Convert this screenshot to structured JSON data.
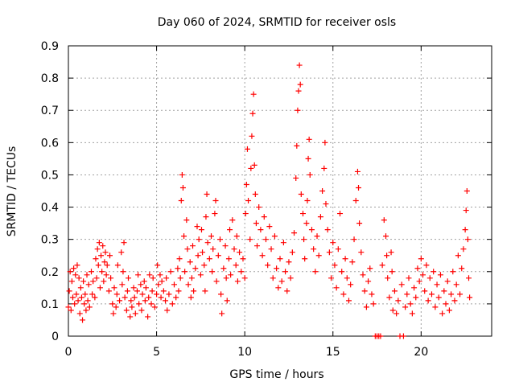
{
  "chart_data": {
    "type": "scatter",
    "title": "Day 060 of 2024, SRMTID for receiver osls",
    "xlabel": "GPS time / hours",
    "ylabel": "SRMTID / TECUs",
    "xlim": [
      0,
      24
    ],
    "ylim": [
      0,
      0.9
    ],
    "xticks": [
      0,
      5,
      10,
      15,
      20
    ],
    "yticks": [
      0,
      0.1,
      0.2,
      0.3,
      0.4,
      0.5,
      0.6,
      0.7,
      0.8,
      0.9
    ],
    "ytick_labels": [
      "0",
      "0.1",
      "0.2",
      "0.3",
      "0.4",
      "0.5",
      "0.6",
      "0.7",
      "0.8",
      "0.9"
    ],
    "grid": true,
    "marker": "+",
    "color": "#ff0000",
    "notes": "Dense red + markers; values read/estimated from plot. Representative subset of points.",
    "points": [
      [
        0.0,
        0.09
      ],
      [
        0.05,
        0.14
      ],
      [
        0.1,
        0.2
      ],
      [
        0.15,
        0.08
      ],
      [
        0.2,
        0.17
      ],
      [
        0.25,
        0.12
      ],
      [
        0.3,
        0.21
      ],
      [
        0.35,
        0.1
      ],
      [
        0.4,
        0.19
      ],
      [
        0.45,
        0.13
      ],
      [
        0.5,
        0.22
      ],
      [
        0.55,
        0.11
      ],
      [
        0.6,
        0.18
      ],
      [
        0.65,
        0.07
      ],
      [
        0.7,
        0.15
      ],
      [
        0.75,
        0.12
      ],
      [
        0.8,
        0.05
      ],
      [
        0.85,
        0.17
      ],
      [
        0.9,
        0.1
      ],
      [
        0.95,
        0.13
      ],
      [
        1.0,
        0.08
      ],
      [
        1.05,
        0.19
      ],
      [
        1.1,
        0.11
      ],
      [
        1.15,
        0.16
      ],
      [
        1.2,
        0.09
      ],
      [
        1.3,
        0.2
      ],
      [
        1.35,
        0.13
      ],
      [
        1.4,
        0.17
      ],
      [
        1.5,
        0.12
      ],
      [
        1.55,
        0.24
      ],
      [
        1.6,
        0.18
      ],
      [
        1.65,
        0.27
      ],
      [
        1.7,
        0.22
      ],
      [
        1.75,
        0.29
      ],
      [
        1.8,
        0.15
      ],
      [
        1.85,
        0.25
      ],
      [
        1.9,
        0.2
      ],
      [
        1.95,
        0.28
      ],
      [
        2.0,
        0.17
      ],
      [
        2.05,
        0.23
      ],
      [
        2.1,
        0.26
      ],
      [
        2.15,
        0.19
      ],
      [
        2.2,
        0.22
      ],
      [
        2.3,
        0.14
      ],
      [
        2.35,
        0.25
      ],
      [
        2.4,
        0.18
      ],
      [
        2.5,
        0.1
      ],
      [
        2.55,
        0.07
      ],
      [
        2.6,
        0.15
      ],
      [
        2.7,
        0.09
      ],
      [
        2.75,
        0.13
      ],
      [
        2.8,
        0.22
      ],
      [
        2.9,
        0.11
      ],
      [
        3.0,
        0.26
      ],
      [
        3.05,
        0.16
      ],
      [
        3.1,
        0.2
      ],
      [
        3.15,
        0.29
      ],
      [
        3.2,
        0.12
      ],
      [
        3.3,
        0.08
      ],
      [
        3.35,
        0.14
      ],
      [
        3.4,
        0.18
      ],
      [
        3.5,
        0.06
      ],
      [
        3.55,
        0.11
      ],
      [
        3.6,
        0.09
      ],
      [
        3.7,
        0.15
      ],
      [
        3.75,
        0.12
      ],
      [
        3.8,
        0.07
      ],
      [
        3.9,
        0.14
      ],
      [
        3.95,
        0.19
      ],
      [
        4.0,
        0.1
      ],
      [
        4.1,
        0.16
      ],
      [
        4.15,
        0.08
      ],
      [
        4.2,
        0.13
      ],
      [
        4.3,
        0.17
      ],
      [
        4.35,
        0.11
      ],
      [
        4.4,
        0.15
      ],
      [
        4.5,
        0.06
      ],
      [
        4.55,
        0.12
      ],
      [
        4.6,
        0.19
      ],
      [
        4.7,
        0.1
      ],
      [
        4.75,
        0.14
      ],
      [
        4.8,
        0.18
      ],
      [
        4.9,
        0.09
      ],
      [
        5.0,
        0.13
      ],
      [
        5.05,
        0.22
      ],
      [
        5.1,
        0.16
      ],
      [
        5.2,
        0.19
      ],
      [
        5.25,
        0.12
      ],
      [
        5.3,
        0.17
      ],
      [
        5.4,
        0.14
      ],
      [
        5.5,
        0.11
      ],
      [
        5.55,
        0.18
      ],
      [
        5.6,
        0.08
      ],
      [
        5.7,
        0.13
      ],
      [
        5.8,
        0.2
      ],
      [
        5.9,
        0.1
      ],
      [
        6.0,
        0.16
      ],
      [
        6.1,
        0.12
      ],
      [
        6.2,
        0.21
      ],
      [
        6.25,
        0.14
      ],
      [
        6.3,
        0.24
      ],
      [
        6.35,
        0.18
      ],
      [
        6.4,
        0.42
      ],
      [
        6.45,
        0.5
      ],
      [
        6.5,
        0.46
      ],
      [
        6.55,
        0.31
      ],
      [
        6.6,
        0.2
      ],
      [
        6.7,
        0.36
      ],
      [
        6.75,
        0.27
      ],
      [
        6.8,
        0.16
      ],
      [
        6.9,
        0.23
      ],
      [
        6.95,
        0.12
      ],
      [
        7.0,
        0.18
      ],
      [
        7.05,
        0.28
      ],
      [
        7.1,
        0.14
      ],
      [
        7.2,
        0.21
      ],
      [
        7.3,
        0.34
      ],
      [
        7.35,
        0.25
      ],
      [
        7.4,
        0.3
      ],
      [
        7.5,
        0.19
      ],
      [
        7.55,
        0.33
      ],
      [
        7.6,
        0.26
      ],
      [
        7.7,
        0.22
      ],
      [
        7.75,
        0.14
      ],
      [
        7.8,
        0.37
      ],
      [
        7.85,
        0.44
      ],
      [
        7.9,
        0.29
      ],
      [
        8.0,
        0.24
      ],
      [
        8.1,
        0.31
      ],
      [
        8.15,
        0.2
      ],
      [
        8.2,
        0.27
      ],
      [
        8.3,
        0.38
      ],
      [
        8.35,
        0.42
      ],
      [
        8.4,
        0.17
      ],
      [
        8.5,
        0.25
      ],
      [
        8.6,
        0.3
      ],
      [
        8.65,
        0.13
      ],
      [
        8.7,
        0.07
      ],
      [
        8.8,
        0.21
      ],
      [
        8.9,
        0.28
      ],
      [
        8.95,
        0.18
      ],
      [
        9.0,
        0.11
      ],
      [
        9.1,
        0.24
      ],
      [
        9.15,
        0.33
      ],
      [
        9.2,
        0.19
      ],
      [
        9.3,
        0.36
      ],
      [
        9.4,
        0.27
      ],
      [
        9.5,
        0.22
      ],
      [
        9.55,
        0.31
      ],
      [
        9.6,
        0.17
      ],
      [
        9.7,
        0.26
      ],
      [
        9.8,
        0.2
      ],
      [
        9.9,
        0.24
      ],
      [
        10.0,
        0.18
      ],
      [
        10.05,
        0.38
      ],
      [
        10.1,
        0.47
      ],
      [
        10.15,
        0.58
      ],
      [
        10.2,
        0.42
      ],
      [
        10.3,
        0.3
      ],
      [
        10.35,
        0.52
      ],
      [
        10.4,
        0.62
      ],
      [
        10.45,
        0.69
      ],
      [
        10.5,
        0.75
      ],
      [
        10.55,
        0.53
      ],
      [
        10.6,
        0.44
      ],
      [
        10.65,
        0.35
      ],
      [
        10.7,
        0.28
      ],
      [
        10.8,
        0.4
      ],
      [
        10.9,
        0.33
      ],
      [
        11.0,
        0.25
      ],
      [
        11.1,
        0.37
      ],
      [
        11.2,
        0.3
      ],
      [
        11.3,
        0.22
      ],
      [
        11.4,
        0.34
      ],
      [
        11.5,
        0.27
      ],
      [
        11.6,
        0.18
      ],
      [
        11.7,
        0.31
      ],
      [
        11.8,
        0.21
      ],
      [
        11.9,
        0.15
      ],
      [
        12.0,
        0.24
      ],
      [
        12.1,
        0.17
      ],
      [
        12.2,
        0.29
      ],
      [
        12.3,
        0.2
      ],
      [
        12.4,
        0.14
      ],
      [
        12.5,
        0.23
      ],
      [
        12.6,
        0.18
      ],
      [
        12.7,
        0.26
      ],
      [
        12.8,
        0.32
      ],
      [
        12.9,
        0.49
      ],
      [
        12.95,
        0.59
      ],
      [
        13.0,
        0.7
      ],
      [
        13.05,
        0.76
      ],
      [
        13.1,
        0.84
      ],
      [
        13.15,
        0.78
      ],
      [
        13.2,
        0.44
      ],
      [
        13.3,
        0.38
      ],
      [
        13.35,
        0.3
      ],
      [
        13.4,
        0.24
      ],
      [
        13.5,
        0.35
      ],
      [
        13.55,
        0.42
      ],
      [
        13.6,
        0.55
      ],
      [
        13.65,
        0.61
      ],
      [
        13.7,
        0.5
      ],
      [
        13.8,
        0.33
      ],
      [
        13.9,
        0.27
      ],
      [
        14.0,
        0.2
      ],
      [
        14.1,
        0.31
      ],
      [
        14.2,
        0.25
      ],
      [
        14.3,
        0.37
      ],
      [
        14.4,
        0.45
      ],
      [
        14.5,
        0.52
      ],
      [
        14.55,
        0.6
      ],
      [
        14.6,
        0.41
      ],
      [
        14.7,
        0.33
      ],
      [
        14.8,
        0.26
      ],
      [
        14.9,
        0.18
      ],
      [
        15.0,
        0.29
      ],
      [
        15.1,
        0.22
      ],
      [
        15.2,
        0.15
      ],
      [
        15.3,
        0.27
      ],
      [
        15.4,
        0.38
      ],
      [
        15.5,
        0.2
      ],
      [
        15.6,
        0.13
      ],
      [
        15.7,
        0.24
      ],
      [
        15.8,
        0.18
      ],
      [
        15.9,
        0.11
      ],
      [
        16.0,
        0.16
      ],
      [
        16.1,
        0.23
      ],
      [
        16.2,
        0.3
      ],
      [
        16.3,
        0.42
      ],
      [
        16.4,
        0.51
      ],
      [
        16.45,
        0.46
      ],
      [
        16.5,
        0.35
      ],
      [
        16.6,
        0.26
      ],
      [
        16.7,
        0.19
      ],
      [
        16.8,
        0.14
      ],
      [
        16.9,
        0.09
      ],
      [
        17.0,
        0.17
      ],
      [
        17.1,
        0.21
      ],
      [
        17.2,
        0.13
      ],
      [
        17.3,
        0.1
      ],
      [
        17.4,
        0.0
      ],
      [
        17.5,
        0.0
      ],
      [
        17.6,
        0.0
      ],
      [
        17.7,
        0.0
      ],
      [
        17.8,
        0.22
      ],
      [
        17.9,
        0.36
      ],
      [
        18.0,
        0.31
      ],
      [
        18.05,
        0.25
      ],
      [
        18.1,
        0.18
      ],
      [
        18.2,
        0.12
      ],
      [
        18.3,
        0.26
      ],
      [
        18.35,
        0.2
      ],
      [
        18.4,
        0.08
      ],
      [
        18.5,
        0.14
      ],
      [
        18.6,
        0.07
      ],
      [
        18.7,
        0.11
      ],
      [
        18.8,
        0.0
      ],
      [
        18.9,
        0.16
      ],
      [
        19.0,
        0.0
      ],
      [
        19.1,
        0.09
      ],
      [
        19.2,
        0.13
      ],
      [
        19.3,
        0.18
      ],
      [
        19.4,
        0.1
      ],
      [
        19.5,
        0.07
      ],
      [
        19.6,
        0.15
      ],
      [
        19.7,
        0.12
      ],
      [
        19.8,
        0.21
      ],
      [
        19.9,
        0.17
      ],
      [
        20.0,
        0.24
      ],
      [
        20.1,
        0.19
      ],
      [
        20.2,
        0.14
      ],
      [
        20.3,
        0.22
      ],
      [
        20.4,
        0.11
      ],
      [
        20.5,
        0.18
      ],
      [
        20.6,
        0.13
      ],
      [
        20.7,
        0.2
      ],
      [
        20.8,
        0.09
      ],
      [
        20.9,
        0.16
      ],
      [
        21.0,
        0.12
      ],
      [
        21.1,
        0.19
      ],
      [
        21.2,
        0.07
      ],
      [
        21.3,
        0.14
      ],
      [
        21.4,
        0.1
      ],
      [
        21.5,
        0.17
      ],
      [
        21.6,
        0.08
      ],
      [
        21.7,
        0.13
      ],
      [
        21.8,
        0.2
      ],
      [
        21.9,
        0.11
      ],
      [
        22.0,
        0.16
      ],
      [
        22.1,
        0.25
      ],
      [
        22.2,
        0.13
      ],
      [
        22.3,
        0.21
      ],
      [
        22.4,
        0.27
      ],
      [
        22.5,
        0.33
      ],
      [
        22.55,
        0.39
      ],
      [
        22.6,
        0.45
      ],
      [
        22.65,
        0.3
      ],
      [
        22.7,
        0.18
      ],
      [
        22.75,
        0.12
      ]
    ]
  }
}
